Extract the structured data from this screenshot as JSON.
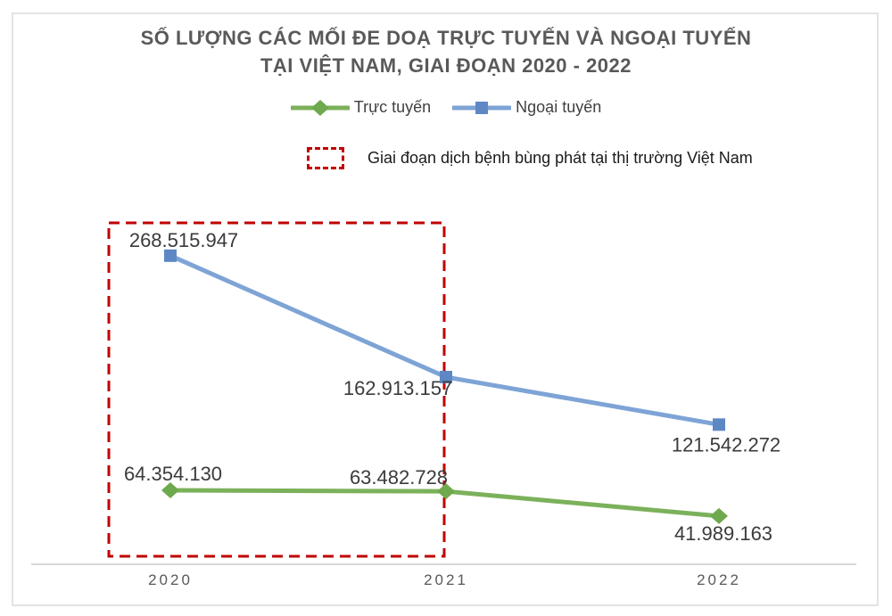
{
  "title": {
    "line1": "SỐ LƯỢNG CÁC MỐI ĐE DOẠ TRỰC TUYẾN VÀ NGOẠI TUYẾN",
    "line2": "TẠI VIỆT NAM, GIAI ĐOẠN 2020 - 2022"
  },
  "legend": {
    "items": [
      {
        "label": "Trực tuyến",
        "marker": "diamond",
        "line_color": "#7CB15B",
        "marker_color": "#6FA94E"
      },
      {
        "label": "Ngoại tuyến",
        "marker": "square",
        "line_color": "#7EA4D6",
        "marker_color": "#5E88C4"
      }
    ]
  },
  "annotation": {
    "label": "Giai đoạn dịch bệnh bùng phát tại thị trường Việt Nam",
    "color": "#C00000"
  },
  "colors": {
    "axis_line": "#D9D9D9",
    "title_text": "#595959",
    "axis_label_text": "#595959",
    "data_label_text": "#3B3B3B",
    "frame_border": "#E3E3E3"
  },
  "chart_data": {
    "type": "line",
    "title": "SỐ LƯỢNG CÁC MỐI ĐE DOẠ TRỰC TUYẾN VÀ NGOẠI TUYẾN TẠI VIỆT NAM, GIAI ĐOẠN 2020 - 2022",
    "categories": [
      "2020",
      "2021",
      "2022"
    ],
    "series": [
      {
        "name": "Trực tuyến",
        "values": [
          64354130,
          63482728,
          41989163
        ],
        "labels": [
          "64.354.130",
          "63.482.728",
          "41.989.163"
        ],
        "line_color": "#7CB15B",
        "marker_color": "#6FA94E",
        "marker": "diamond"
      },
      {
        "name": "Ngoại tuyến",
        "values": [
          268515947,
          162913157,
          121542272
        ],
        "labels": [
          "268.515.947",
          "162.913.157",
          "121.542.272"
        ],
        "line_color": "#7EA4D6",
        "marker_color": "#5E88C4",
        "marker": "square"
      }
    ],
    "xlabel": "",
    "ylabel": "",
    "ylim": [
      0,
      280000000
    ],
    "grid": false,
    "y_axis_visible": false,
    "legend_position": "top",
    "data_labels": true,
    "highlight_region": {
      "from_category": "2020",
      "to_category": "2021",
      "style": "dashed-rectangle",
      "color": "#C00000",
      "label": "Giai đoạn dịch bệnh bùng phát tại thị trường Việt Nam"
    }
  }
}
